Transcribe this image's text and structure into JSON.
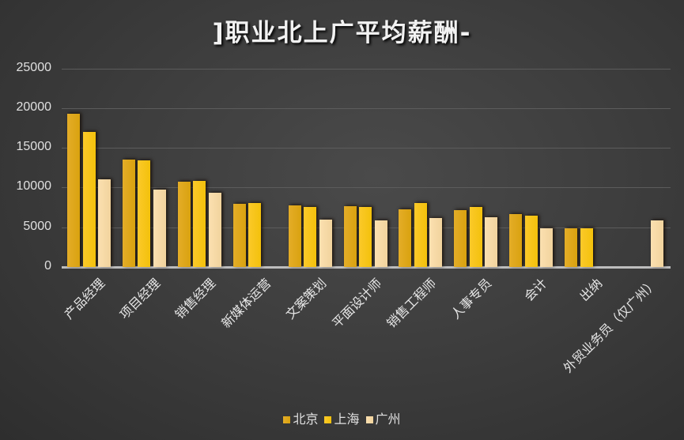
{
  "chart_data": {
    "type": "bar",
    "title": "]职业北上广平均薪酬-",
    "xlabel": "",
    "ylabel": "",
    "ylim": [
      0,
      25000
    ],
    "yticks": [
      0,
      5000,
      10000,
      15000,
      20000,
      25000
    ],
    "grid": true,
    "legend_position": "bottom",
    "categories": [
      "产品经理",
      "项目经理",
      "销售经理",
      "新媒体运营",
      "文案策划",
      "平面设计师",
      "销售工程师",
      "人事专员",
      "会计",
      "出纳",
      "外贸业务员（仅广州）"
    ],
    "series": [
      {
        "name": "北京",
        "color": "#dca51a",
        "values": [
          19300,
          13500,
          10700,
          8000,
          7750,
          7650,
          7250,
          7150,
          6650,
          4850,
          null
        ]
      },
      {
        "name": "上海",
        "color": "#f7c51b",
        "values": [
          17000,
          13450,
          10800,
          8050,
          7550,
          7550,
          8050,
          7550,
          6450,
          4850,
          null
        ]
      },
      {
        "name": "广州",
        "color": "#f6d9a6",
        "values": [
          11050,
          9750,
          9350,
          null,
          5950,
          5850,
          6150,
          6250,
          4850,
          null,
          5850
        ]
      }
    ]
  },
  "title": "]职业北上广平均薪酬-",
  "yticks": [
    "25000",
    "20000",
    "15000",
    "10000",
    "5000",
    "0"
  ],
  "legend": [
    "北京",
    "上海",
    "广州"
  ]
}
